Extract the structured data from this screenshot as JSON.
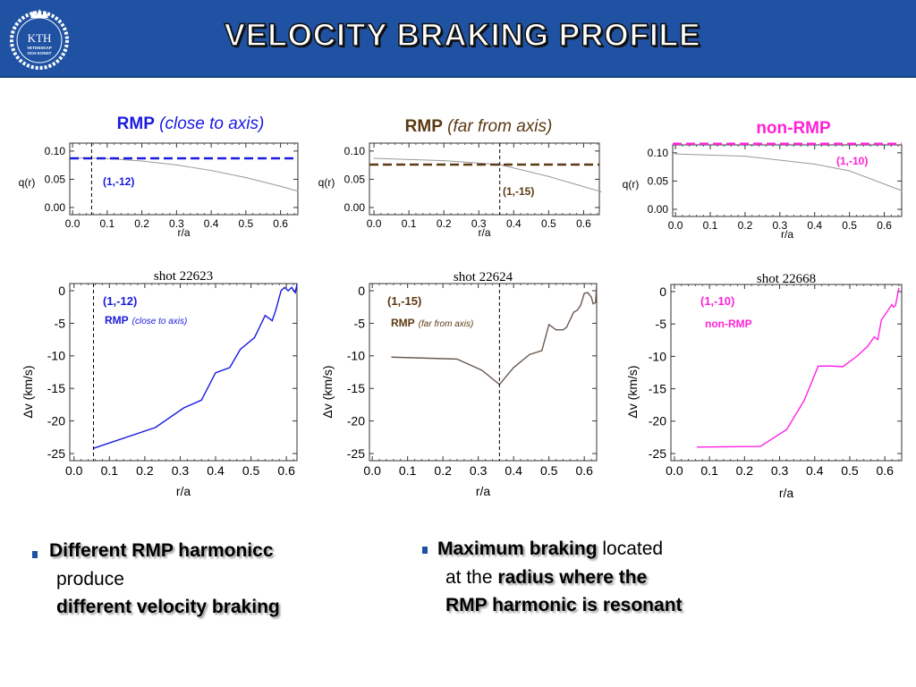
{
  "header": {
    "title": "VELOCITY BRAKING PROFILE",
    "logo_text": "KTH VETENSKAP OCH KONST"
  },
  "panels": [
    {
      "title_bold": "RMP",
      "title_italic": "(close to axis)",
      "color": "#1a1ae0"
    },
    {
      "title_bold": "RMP",
      "title_italic": "(far from axis)",
      "color": "#5a3a12"
    },
    {
      "title_bold": "non-RMP",
      "title_italic": "",
      "color": "#ff22d8"
    }
  ],
  "chart_data": [
    {
      "type": "line",
      "title": "",
      "xlabel": "r/a",
      "ylabel": "q(r)",
      "xlim": [
        -0.008,
        0.65
      ],
      "ylim": [
        -0.0127,
        0.114
      ],
      "xticks": [
        "0.0",
        "0.1",
        "0.2",
        "0.3",
        "0.4",
        "0.5",
        "0.6"
      ],
      "yticks": [
        "0.00",
        "0.05",
        "0.10"
      ],
      "series": [
        {
          "name": "q profile",
          "color": "#999999",
          "x": [
            0,
            0.1,
            0.2,
            0.3,
            0.4,
            0.5,
            0.6,
            0.65
          ],
          "y": [
            0.088,
            0.0866,
            0.0824,
            0.0754,
            0.0656,
            0.053,
            0.0376,
            0.0289
          ]
        }
      ],
      "hlines": [
        {
          "y": 0.087,
          "color": "#1a1ae0"
        }
      ],
      "vlines": [
        {
          "x": 0.055
        }
      ],
      "annotations": [
        {
          "text": "(1,-12)",
          "color": "#1a1ae0"
        }
      ]
    },
    {
      "type": "line",
      "title": "",
      "xlabel": "r/a",
      "ylabel": "q(r)",
      "xlim": [
        -0.013,
        0.645
      ],
      "ylim": [
        -0.0127,
        0.114
      ],
      "xticks": [
        "0.0",
        "0.1",
        "0.2",
        "0.3",
        "0.4",
        "0.5",
        "0.6"
      ],
      "yticks": [
        "0.00",
        "0.05",
        "0.10"
      ],
      "series": [
        {
          "name": "q profile",
          "color": "#999999",
          "x": [
            0,
            0.2,
            0.36,
            0.5,
            0.65
          ],
          "y": [
            0.087,
            0.083,
            0.076,
            0.055,
            0.028
          ]
        }
      ],
      "hlines": [
        {
          "y": 0.076,
          "color": "#5a3a12"
        }
      ],
      "vlines": [
        {
          "x": 0.36
        }
      ],
      "annotations": [
        {
          "text": "(1,-15)",
          "color": "#5a3a12"
        }
      ]
    },
    {
      "type": "line",
      "title": "",
      "xlabel": "r/a",
      "ylabel": "q(r)",
      "xlim": [
        -0.008,
        0.65
      ],
      "ylim": [
        -0.0127,
        0.114
      ],
      "xticks": [
        "0.0",
        "0.1",
        "0.2",
        "0.3",
        "0.4",
        "0.5",
        "0.6"
      ],
      "yticks": [
        "0.00",
        "0.05",
        "0.10"
      ],
      "series": [
        {
          "name": "q profile",
          "color": "#999999",
          "x": [
            0,
            0.2,
            0.4,
            0.5,
            0.65
          ],
          "y": [
            0.098,
            0.094,
            0.08,
            0.068,
            0.033
          ]
        }
      ],
      "hlines": [
        {
          "y": 0.116,
          "color": "#ff22d8"
        }
      ],
      "vlines": [],
      "annotations": [
        {
          "text": "(1,-10)",
          "color": "#ff22d8"
        }
      ]
    },
    {
      "type": "line",
      "title": "shot 22623",
      "xlabel": "r/a",
      "ylabel": "Δv (km/s)",
      "xlim": [
        -0.012,
        0.63
      ],
      "ylim": [
        -26.1,
        1.1
      ],
      "xticks": [
        "0.0",
        "0.1",
        "0.2",
        "0.3",
        "0.4",
        "0.5",
        "0.6"
      ],
      "yticks": [
        "-25",
        "-20",
        "-15",
        "-10",
        "-5",
        "0"
      ],
      "series": [
        {
          "name": "shot 22623",
          "color": "#1a1ae0",
          "x": [
            0.055,
            0.23,
            0.31,
            0.36,
            0.4,
            0.44,
            0.47,
            0.51,
            0.54,
            0.56,
            0.57,
            0.585,
            0.595,
            0.605,
            0.615,
            0.625,
            0.63
          ],
          "y": [
            -24.2,
            -21,
            -18,
            -16.8,
            -12.6,
            -11.8,
            -9,
            -7.2,
            -3.8,
            -4.6,
            -3,
            0,
            0.5,
            0,
            0.5,
            -0.3,
            1
          ]
        }
      ],
      "hlines": [],
      "vlines": [
        {
          "x": 0.055
        }
      ],
      "annotations": [
        {
          "text": "(1,-12)",
          "color": "#1a1ae0"
        },
        {
          "text": "RMP",
          "italic": "(close to axis)",
          "color": "#1a1ae0"
        }
      ]
    },
    {
      "type": "line",
      "title": "shot 22624",
      "xlabel": "r/a",
      "ylabel": "Δv (km/s)",
      "xlim": [
        -0.008,
        0.635
      ],
      "ylim": [
        -26.1,
        1.1
      ],
      "xticks": [
        "0.0",
        "0.1",
        "0.2",
        "0.3",
        "0.4",
        "0.5",
        "0.6"
      ],
      "yticks": [
        "-25",
        "-20",
        "-15",
        "-10",
        "-5",
        "0"
      ],
      "series": [
        {
          "name": "shot 22624",
          "color": "#6b5a50",
          "x": [
            0.055,
            0.24,
            0.31,
            0.36,
            0.4,
            0.445,
            0.48,
            0.5,
            0.52,
            0.54,
            0.55,
            0.57,
            0.58,
            0.59,
            0.6,
            0.61,
            0.62,
            0.625,
            0.632,
            0.635
          ],
          "y": [
            -10.2,
            -10.5,
            -12.2,
            -14.4,
            -11.8,
            -9.8,
            -9.2,
            -5.2,
            -6,
            -6,
            -5.6,
            -3.3,
            -3,
            -2.2,
            -0.4,
            -0.3,
            -1,
            -2,
            -1.8,
            1
          ]
        }
      ],
      "hlines": [],
      "vlines": [
        {
          "x": 0.36
        }
      ],
      "annotations": [
        {
          "text": "(1,-15)",
          "color": "#5a3a12"
        },
        {
          "text": "RMP",
          "italic": "(far from axis)",
          "color": "#5a3a12"
        }
      ]
    },
    {
      "type": "line",
      "title": "shot 22668",
      "xlabel": "r/a",
      "ylabel": "Δv (km/s)",
      "xlim": [
        -0.01,
        0.648
      ],
      "ylim": [
        -26.1,
        1.1
      ],
      "xticks": [
        "0.0",
        "0.1",
        "0.2",
        "0.3",
        "0.4",
        "0.5",
        "0.6"
      ],
      "yticks": [
        "-25",
        "-20",
        "-15",
        "-10",
        "-5",
        "0"
      ],
      "series": [
        {
          "name": "shot 22668",
          "color": "#ff22e8",
          "x": [
            0.065,
            0.245,
            0.32,
            0.37,
            0.41,
            0.45,
            0.48,
            0.52,
            0.55,
            0.57,
            0.58,
            0.59,
            0.62,
            0.625,
            0.63,
            0.64
          ],
          "y": [
            -24,
            -23.9,
            -21.3,
            -16.8,
            -11.5,
            -11.5,
            -11.6,
            -10,
            -8.5,
            -7,
            -7.4,
            -4.4,
            -2,
            -2.4,
            -2.2,
            0.5
          ]
        }
      ],
      "hlines": [],
      "vlines": [],
      "annotations": [
        {
          "text": "(1,-10)",
          "color": "#ff22d8"
        },
        {
          "text": "non-RMP",
          "color": "#ff22d8"
        }
      ]
    }
  ],
  "bullets": {
    "left": {
      "line1_bold": "Different RMP harmonicc",
      "line2": "produce",
      "line3_bold": "different velocity braking"
    },
    "right": {
      "line1_bold": "Maximum braking",
      "line1_rest": " located",
      "line2_pre": "at the ",
      "line2_bold": "radius where the",
      "line3_bold": "RMP harmonic is resonant"
    }
  }
}
